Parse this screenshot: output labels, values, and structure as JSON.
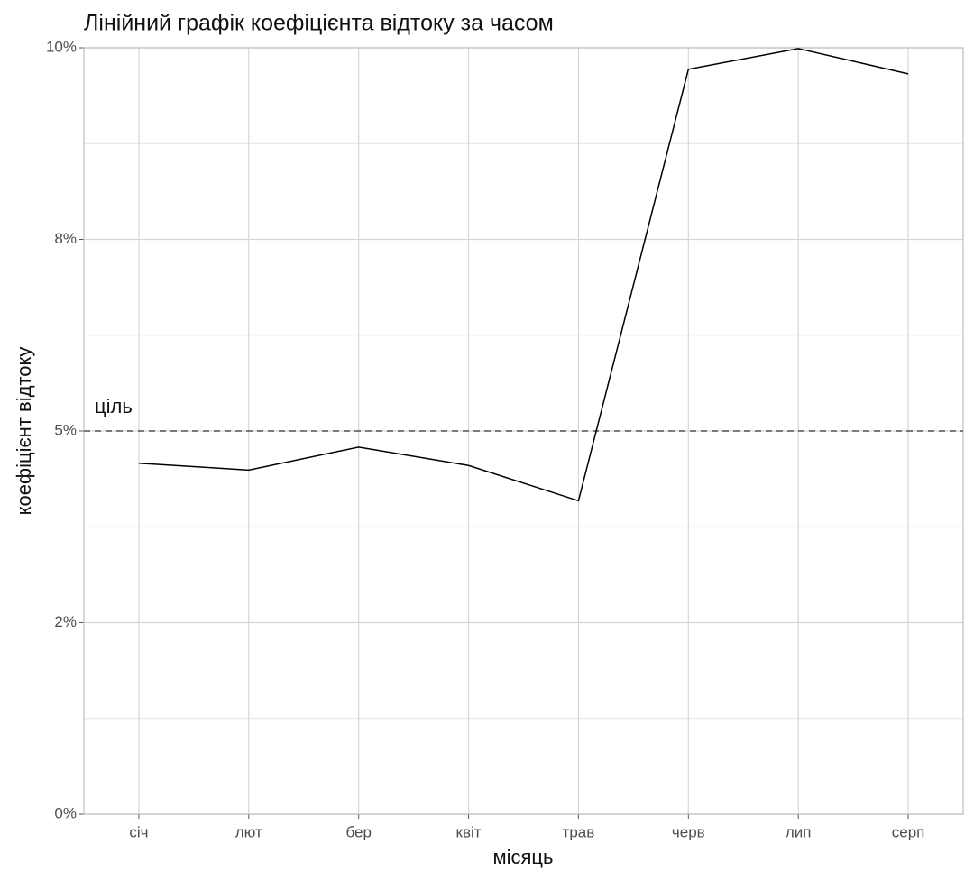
{
  "chart_data": {
    "type": "line",
    "title": "Лінійний графік коефіцієнта відтоку за часом",
    "x_label": "місяць",
    "y_label": "коефіцієнт відтоку",
    "categories": [
      "січ",
      "лют",
      "бер",
      "квіт",
      "трав",
      "черв",
      "лип",
      "серп"
    ],
    "values": [
      4.58,
      4.49,
      4.79,
      4.55,
      4.09,
      9.72,
      9.99,
      9.66
    ],
    "color": "#000000",
    "ylim": [
      0,
      10
    ],
    "yticks": [
      {
        "value": 0,
        "label": "0%"
      },
      {
        "value": 2.5,
        "label": "2%"
      },
      {
        "value": 5,
        "label": "5%"
      },
      {
        "value": 7.5,
        "label": "8%"
      },
      {
        "value": 10,
        "label": "10%"
      }
    ],
    "grid": true,
    "target": 5,
    "target_label": "ціль"
  }
}
